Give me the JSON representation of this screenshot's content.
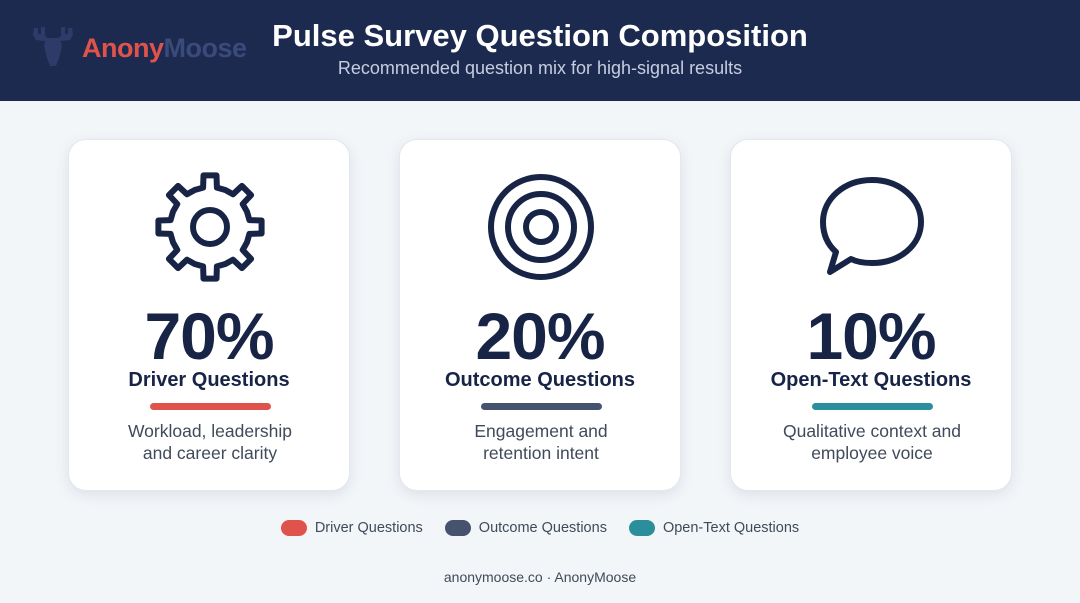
{
  "header": {
    "logo": {
      "text_part1": "Anony",
      "text_part2": "Moose",
      "icon": "moose-icon"
    },
    "title": "Pulse Survey Question Composition",
    "subtitle": "Recommended question mix for high-signal results"
  },
  "colors": {
    "header_bg": "#1d2a4f",
    "driver": "#e0534a",
    "outcome": "#45536e",
    "open_text": "#2b8f9b",
    "text_dark": "#172446"
  },
  "chart_data": {
    "type": "table",
    "title": "Pulse Survey Question Composition",
    "subtitle": "Recommended question mix for high-signal results",
    "categories": [
      "Driver Questions",
      "Outcome Questions",
      "Open-Text Questions"
    ],
    "values": [
      70,
      20,
      10
    ],
    "unit": "%",
    "legend": [
      "Driver Questions",
      "Outcome Questions",
      "Open-Text Questions"
    ],
    "legend_placement": "bottom"
  },
  "cards": [
    {
      "icon": "gear-icon",
      "percent": "70%",
      "name": "Driver Questions",
      "desc_line1": "Workload, leadership",
      "desc_line2": "and career clarity",
      "color": "#e0534a"
    },
    {
      "icon": "target-icon",
      "percent": "20%",
      "name": "Outcome Questions",
      "desc_line1": "Engagement and",
      "desc_line2": "retention intent",
      "color": "#45536e"
    },
    {
      "icon": "speech-bubble-icon",
      "percent": "10%",
      "name": "Open-Text Questions",
      "desc_line1": "Qualitative context and",
      "desc_line2": "employee voice",
      "color": "#2b8f9b"
    }
  ],
  "legend": [
    {
      "label": "Driver Questions",
      "color": "#e0534a"
    },
    {
      "label": "Outcome Questions",
      "color": "#45536e"
    },
    {
      "label": "Open-Text Questions",
      "color": "#2b8f9b"
    }
  ],
  "footer": "anonymoose.co · AnonyMoose"
}
